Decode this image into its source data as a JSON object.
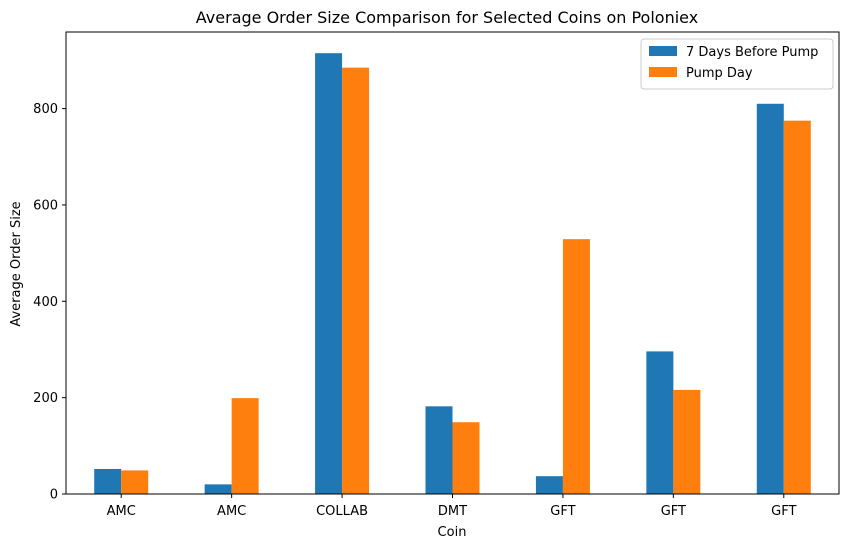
{
  "chart_data": {
    "type": "bar",
    "title": "Average Order Size Comparison for Selected Coins on Poloniex",
    "xlabel": "Coin",
    "ylabel": "Average Order Size",
    "categories": [
      "AMC",
      "AMC",
      "COLLAB",
      "DMT",
      "GFT",
      "GFT",
      "GFT"
    ],
    "series": [
      {
        "name": "7 Days Before Pump",
        "color": "#1f77b4",
        "values": [
          52,
          20,
          915,
          182,
          37,
          296,
          810
        ]
      },
      {
        "name": "Pump Day",
        "color": "#ff7f0e",
        "values": [
          49,
          199,
          885,
          149,
          529,
          216,
          775
        ]
      }
    ],
    "ylim": [
      0,
      959
    ],
    "yticks": [
      0,
      200,
      400,
      600,
      800
    ],
    "grid": false,
    "legend_position": "top-right"
  }
}
